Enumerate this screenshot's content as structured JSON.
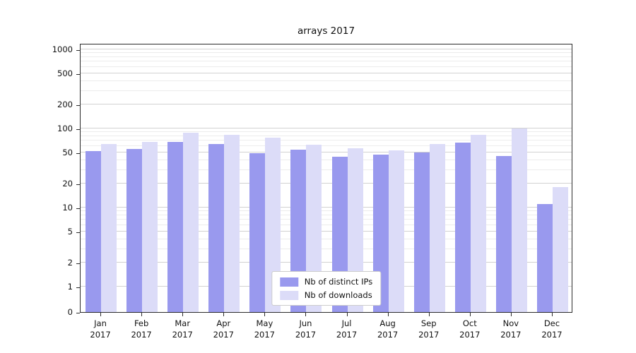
{
  "title": "arrays 2017",
  "colors": {
    "series1": "#9999ee",
    "series2": "#dcdcf8",
    "grid_major": "#d2d2d2",
    "grid_minor": "#ececec",
    "axis": "#2b2b2b"
  },
  "legend": {
    "items": [
      {
        "label": "Nb of distinct IPs",
        "color_key": "series1"
      },
      {
        "label": "Nb of downloads",
        "color_key": "series2"
      }
    ]
  },
  "chart_data": {
    "type": "bar",
    "title": "arrays 2017",
    "categories": [
      "Jan",
      "Feb",
      "Mar",
      "Apr",
      "May",
      "Jun",
      "Jul",
      "Aug",
      "Sep",
      "Oct",
      "Nov",
      "Dec"
    ],
    "year": "2017",
    "series": [
      {
        "name": "Nb of distinct IPs",
        "values": [
          52,
          55,
          68,
          64,
          49,
          54,
          44,
          47,
          50,
          66,
          45,
          11
        ]
      },
      {
        "name": "Nb of downloads",
        "values": [
          63,
          68,
          89,
          83,
          77,
          62,
          56,
          53,
          64,
          83,
          100,
          18
        ]
      }
    ],
    "yscale": "symlog",
    "yticks": [
      0,
      1,
      2,
      5,
      10,
      20,
      50,
      100,
      200,
      500,
      1000
    ],
    "ylim": [
      0,
      1200
    ],
    "grid": true,
    "legend_position": "lower center",
    "xlabel": "",
    "ylabel": ""
  }
}
